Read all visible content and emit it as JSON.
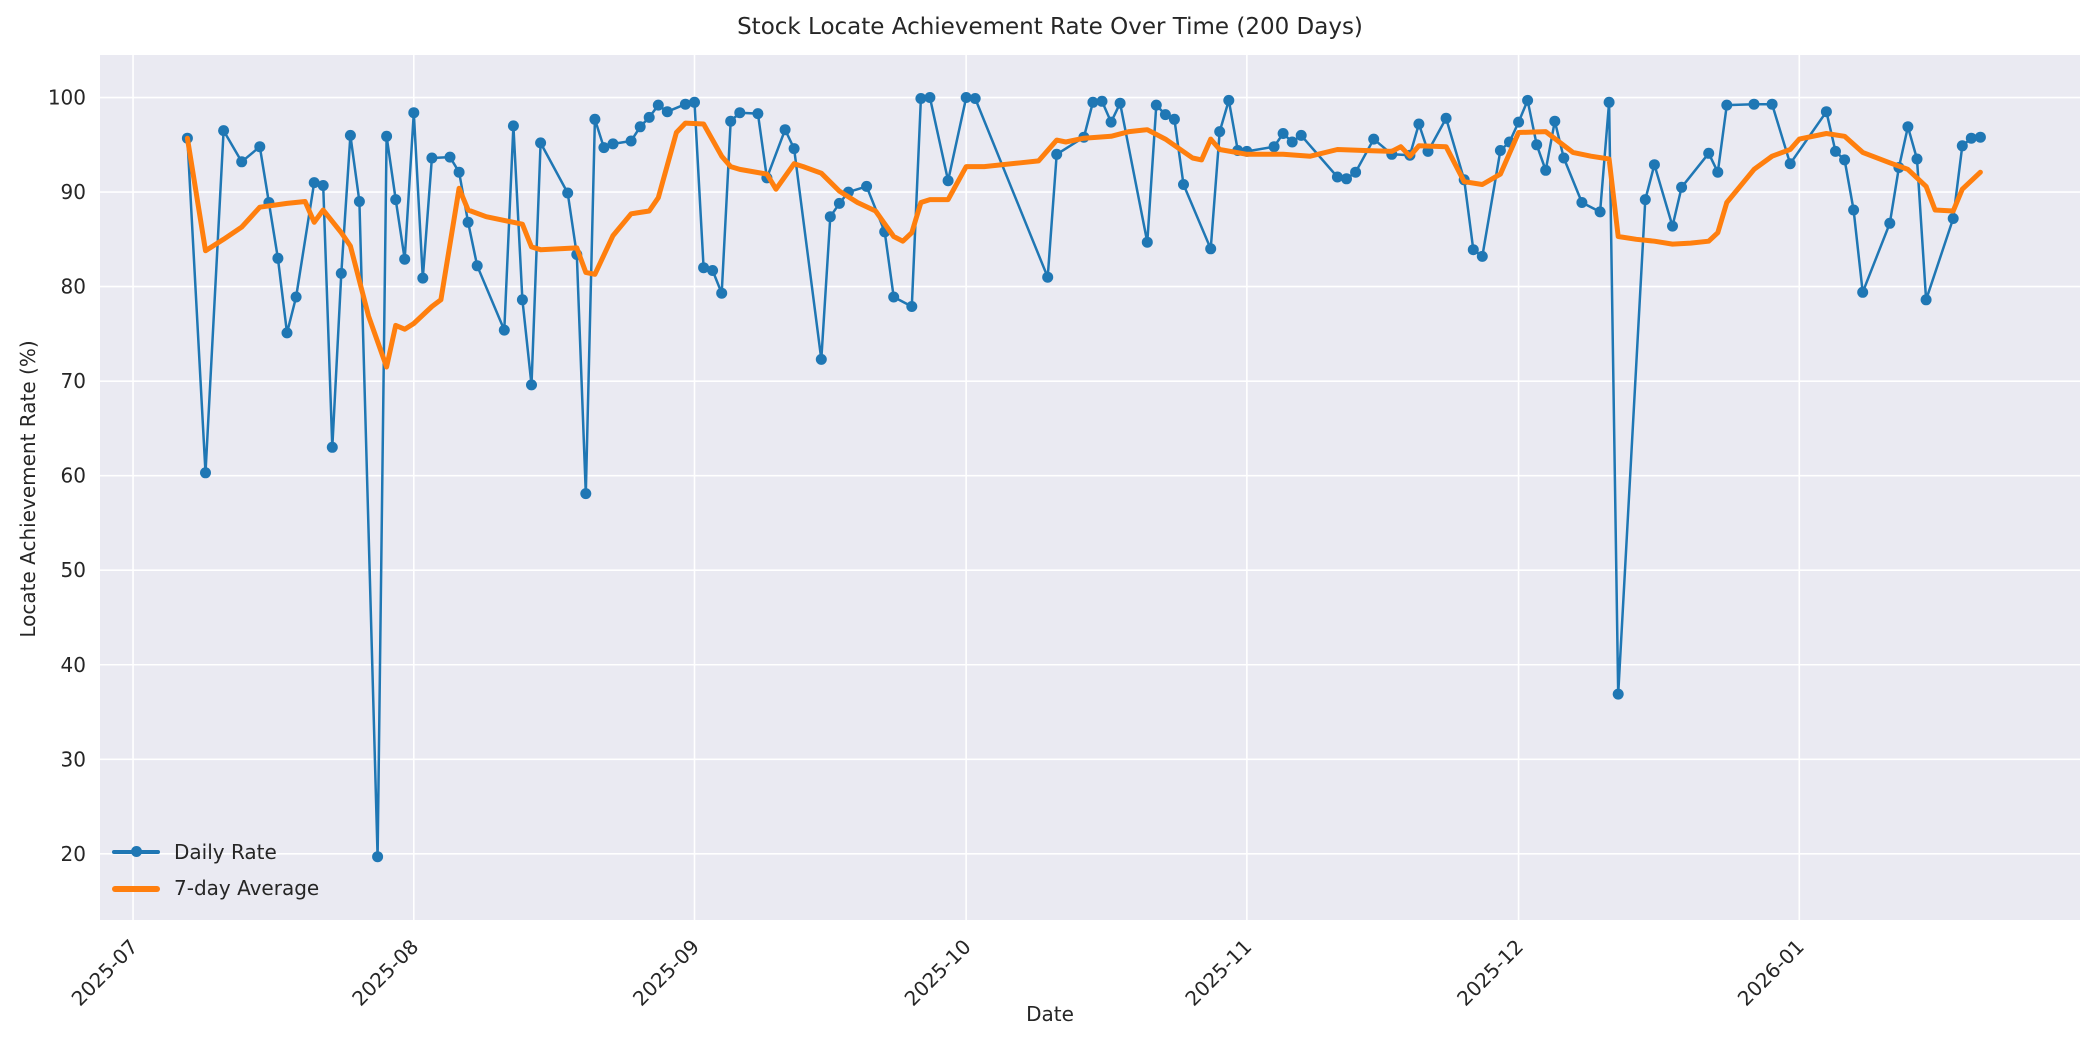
{
  "title": "Stock Locate Achievement Rate Over Time (200 Days)",
  "axes": {
    "xlabel": "Date",
    "ylabel": "Locate Achievement Rate (%)"
  },
  "legend": {
    "daily_label": "Daily Rate",
    "avg_label": "7-day Average"
  },
  "colors": {
    "daily": "#1f77b4",
    "average": "#ff7f0e",
    "plot_bg": "#eaeaf2",
    "grid": "#ffffff",
    "text": "#262626"
  },
  "chart_data": {
    "type": "line",
    "title": "Stock Locate Achievement Rate Over Time (200 Days)",
    "xlabel": "Date",
    "ylabel": "Locate Achievement Rate (%)",
    "grid": true,
    "legend_position": "lower-left",
    "ylim": [
      13.0,
      104.5
    ],
    "xlim_days": [
      -3.65,
      215.0
    ],
    "y_ticks": [
      20,
      30,
      40,
      50,
      60,
      70,
      80,
      90,
      100
    ],
    "x_ticks": [
      {
        "label": "2025-07",
        "day": 0
      },
      {
        "label": "2025-08",
        "day": 31
      },
      {
        "label": "2025-09",
        "day": 62
      },
      {
        "label": "2025-10",
        "day": 92
      },
      {
        "label": "2025-11",
        "day": 123
      },
      {
        "label": "2025-12",
        "day": 153
      },
      {
        "label": "2026-01",
        "day": 184
      }
    ],
    "series": [
      {
        "name": "Daily Rate",
        "color": "#1f77b4",
        "line_width": 2.5,
        "marker": "circle",
        "marker_radius": 5.5,
        "points": [
          [
            "2025-07-07",
            95.7
          ],
          [
            "2025-07-09",
            60.3
          ],
          [
            "2025-07-11",
            96.5
          ],
          [
            "2025-07-13",
            93.2
          ],
          [
            "2025-07-15",
            94.8
          ],
          [
            "2025-07-16",
            88.9
          ],
          [
            "2025-07-17",
            83.0
          ],
          [
            "2025-07-18",
            75.1
          ],
          [
            "2025-07-19",
            78.9
          ],
          [
            "2025-07-21",
            91.0
          ],
          [
            "2025-07-22",
            90.7
          ],
          [
            "2025-07-23",
            63.0
          ],
          [
            "2025-07-24",
            81.4
          ],
          [
            "2025-07-25",
            96.0
          ],
          [
            "2025-07-26",
            89.0
          ],
          [
            "2025-07-28",
            19.7
          ],
          [
            "2025-07-29",
            95.9
          ],
          [
            "2025-07-30",
            89.2
          ],
          [
            "2025-07-31",
            82.9
          ],
          [
            "2025-08-01",
            98.4
          ],
          [
            "2025-08-02",
            80.9
          ],
          [
            "2025-08-03",
            93.6
          ],
          [
            "2025-08-05",
            93.7
          ],
          [
            "2025-08-06",
            92.1
          ],
          [
            "2025-08-07",
            86.8
          ],
          [
            "2025-08-08",
            82.2
          ],
          [
            "2025-08-11",
            75.4
          ],
          [
            "2025-08-12",
            97.0
          ],
          [
            "2025-08-13",
            78.6
          ],
          [
            "2025-08-14",
            69.6
          ],
          [
            "2025-08-15",
            95.2
          ],
          [
            "2025-08-18",
            89.9
          ],
          [
            "2025-08-19",
            83.4
          ],
          [
            "2025-08-20",
            58.1
          ],
          [
            "2025-08-21",
            97.7
          ],
          [
            "2025-08-22",
            94.7
          ],
          [
            "2025-08-23",
            95.1
          ],
          [
            "2025-08-25",
            95.4
          ],
          [
            "2025-08-26",
            96.9
          ],
          [
            "2025-08-27",
            97.9
          ],
          [
            "2025-08-28",
            99.2
          ],
          [
            "2025-08-29",
            98.5
          ],
          [
            "2025-08-31",
            99.3
          ],
          [
            "2025-09-01",
            99.5
          ],
          [
            "2025-09-02",
            82.0
          ],
          [
            "2025-09-03",
            81.7
          ],
          [
            "2025-09-04",
            79.3
          ],
          [
            "2025-09-05",
            97.5
          ],
          [
            "2025-09-06",
            98.4
          ],
          [
            "2025-09-08",
            98.3
          ],
          [
            "2025-09-09",
            91.5
          ],
          [
            "2025-09-11",
            96.6
          ],
          [
            "2025-09-12",
            94.6
          ],
          [
            "2025-09-15",
            72.3
          ],
          [
            "2025-09-16",
            87.4
          ],
          [
            "2025-09-17",
            88.8
          ],
          [
            "2025-09-18",
            90.0
          ],
          [
            "2025-09-20",
            90.6
          ],
          [
            "2025-09-22",
            85.8
          ],
          [
            "2025-09-23",
            78.9
          ],
          [
            "2025-09-25",
            77.9
          ],
          [
            "2025-09-26",
            99.9
          ],
          [
            "2025-09-27",
            100.0
          ],
          [
            "2025-09-29",
            91.2
          ],
          [
            "2025-10-01",
            100.0
          ],
          [
            "2025-10-02",
            99.9
          ],
          [
            "2025-10-10",
            81.0
          ],
          [
            "2025-10-11",
            94.0
          ],
          [
            "2025-10-14",
            95.8
          ],
          [
            "2025-10-15",
            99.5
          ],
          [
            "2025-10-16",
            99.6
          ],
          [
            "2025-10-17",
            97.4
          ],
          [
            "2025-10-18",
            99.4
          ],
          [
            "2025-10-21",
            84.7
          ],
          [
            "2025-10-22",
            99.2
          ],
          [
            "2025-10-23",
            98.2
          ],
          [
            "2025-10-24",
            97.7
          ],
          [
            "2025-10-25",
            90.8
          ],
          [
            "2025-10-28",
            84.0
          ],
          [
            "2025-10-29",
            96.4
          ],
          [
            "2025-10-30",
            99.7
          ],
          [
            "2025-10-31",
            94.4
          ],
          [
            "2025-11-01",
            94.3
          ],
          [
            "2025-11-04",
            94.8
          ],
          [
            "2025-11-05",
            96.2
          ],
          [
            "2025-11-06",
            95.3
          ],
          [
            "2025-11-07",
            96.0
          ],
          [
            "2025-11-11",
            91.6
          ],
          [
            "2025-11-12",
            91.4
          ],
          [
            "2025-11-13",
            92.1
          ],
          [
            "2025-11-15",
            95.6
          ],
          [
            "2025-11-17",
            94.0
          ],
          [
            "2025-11-19",
            93.9
          ],
          [
            "2025-11-20",
            97.2
          ],
          [
            "2025-11-21",
            94.3
          ],
          [
            "2025-11-23",
            97.8
          ],
          [
            "2025-11-25",
            91.3
          ],
          [
            "2025-11-26",
            83.9
          ],
          [
            "2025-11-27",
            83.2
          ],
          [
            "2025-11-29",
            94.4
          ],
          [
            "2025-11-30",
            95.3
          ],
          [
            "2025-12-01",
            97.4
          ],
          [
            "2025-12-02",
            99.7
          ],
          [
            "2025-12-03",
            95.0
          ],
          [
            "2025-12-04",
            92.3
          ],
          [
            "2025-12-05",
            97.5
          ],
          [
            "2025-12-06",
            93.6
          ],
          [
            "2025-12-08",
            88.9
          ],
          [
            "2025-12-10",
            87.9
          ],
          [
            "2025-12-11",
            99.5
          ],
          [
            "2025-12-12",
            36.9
          ],
          [
            "2025-12-15",
            89.2
          ],
          [
            "2025-12-16",
            92.9
          ],
          [
            "2025-12-18",
            86.4
          ],
          [
            "2025-12-19",
            90.5
          ],
          [
            "2025-12-22",
            94.1
          ],
          [
            "2025-12-23",
            92.1
          ],
          [
            "2025-12-24",
            99.2
          ],
          [
            "2025-12-27",
            99.3
          ],
          [
            "2025-12-29",
            99.3
          ],
          [
            "2025-12-31",
            93.0
          ],
          [
            "2026-01-04",
            98.5
          ],
          [
            "2026-01-05",
            94.3
          ],
          [
            "2026-01-06",
            93.4
          ],
          [
            "2026-01-07",
            88.1
          ],
          [
            "2026-01-08",
            79.4
          ],
          [
            "2026-01-11",
            86.7
          ],
          [
            "2026-01-12",
            92.6
          ],
          [
            "2026-01-13",
            96.9
          ],
          [
            "2026-01-14",
            93.5
          ],
          [
            "2026-01-15",
            78.6
          ],
          [
            "2026-01-18",
            87.2
          ],
          [
            "2026-01-19",
            94.9
          ],
          [
            "2026-01-20",
            95.7
          ],
          [
            "2026-01-21",
            95.8
          ]
        ]
      },
      {
        "name": "7-day Average",
        "color": "#ff7f0e",
        "line_width": 5,
        "marker": "none",
        "points": [
          [
            "2025-07-07",
            95.7
          ],
          [
            "2025-07-09",
            83.8
          ],
          [
            "2025-07-11",
            85.0
          ],
          [
            "2025-07-13",
            86.3
          ],
          [
            "2025-07-15",
            88.4
          ],
          [
            "2025-07-18",
            88.8
          ],
          [
            "2025-07-20",
            89.0
          ],
          [
            "2025-07-21",
            86.8
          ],
          [
            "2025-07-22",
            88.1
          ],
          [
            "2025-07-24",
            85.7
          ],
          [
            "2025-07-25",
            84.3
          ],
          [
            "2025-07-27",
            76.9
          ],
          [
            "2025-07-29",
            71.5
          ],
          [
            "2025-07-30",
            75.9
          ],
          [
            "2025-07-31",
            75.5
          ],
          [
            "2025-08-01",
            76.1
          ],
          [
            "2025-08-03",
            77.9
          ],
          [
            "2025-08-04",
            78.6
          ],
          [
            "2025-08-06",
            90.4
          ],
          [
            "2025-08-07",
            88.1
          ],
          [
            "2025-08-09",
            87.4
          ],
          [
            "2025-08-13",
            86.6
          ],
          [
            "2025-08-14",
            84.2
          ],
          [
            "2025-08-15",
            83.9
          ],
          [
            "2025-08-19",
            84.1
          ],
          [
            "2025-08-20",
            81.5
          ],
          [
            "2025-08-21",
            81.3
          ],
          [
            "2025-08-23",
            85.4
          ],
          [
            "2025-08-25",
            87.7
          ],
          [
            "2025-08-27",
            88.0
          ],
          [
            "2025-08-28",
            89.4
          ],
          [
            "2025-08-30",
            96.3
          ],
          [
            "2025-08-31",
            97.3
          ],
          [
            "2025-09-02",
            97.2
          ],
          [
            "2025-09-04",
            93.8
          ],
          [
            "2025-09-05",
            92.7
          ],
          [
            "2025-09-06",
            92.4
          ],
          [
            "2025-09-09",
            91.9
          ],
          [
            "2025-09-10",
            90.3
          ],
          [
            "2025-09-12",
            93.0
          ],
          [
            "2025-09-13",
            92.7
          ],
          [
            "2025-09-15",
            92.0
          ],
          [
            "2025-09-17",
            90.1
          ],
          [
            "2025-09-19",
            88.9
          ],
          [
            "2025-09-21",
            88.0
          ],
          [
            "2025-09-23",
            85.3
          ],
          [
            "2025-09-24",
            84.8
          ],
          [
            "2025-09-25",
            85.7
          ],
          [
            "2025-09-26",
            88.9
          ],
          [
            "2025-09-27",
            89.2
          ],
          [
            "2025-09-29",
            89.2
          ],
          [
            "2025-10-01",
            92.7
          ],
          [
            "2025-10-03",
            92.7
          ],
          [
            "2025-10-07",
            93.1
          ],
          [
            "2025-10-09",
            93.3
          ],
          [
            "2025-10-11",
            95.5
          ],
          [
            "2025-10-12",
            95.3
          ],
          [
            "2025-10-14",
            95.7
          ],
          [
            "2025-10-17",
            95.9
          ],
          [
            "2025-10-19",
            96.4
          ],
          [
            "2025-10-21",
            96.6
          ],
          [
            "2025-10-23",
            95.6
          ],
          [
            "2025-10-26",
            93.6
          ],
          [
            "2025-10-27",
            93.4
          ],
          [
            "2025-10-28",
            95.6
          ],
          [
            "2025-10-29",
            94.5
          ],
          [
            "2025-11-01",
            94.0
          ],
          [
            "2025-11-05",
            94.0
          ],
          [
            "2025-11-08",
            93.8
          ],
          [
            "2025-11-11",
            94.5
          ],
          [
            "2025-11-14",
            94.4
          ],
          [
            "2025-11-17",
            94.3
          ],
          [
            "2025-11-18",
            94.8
          ],
          [
            "2025-11-19",
            93.8
          ],
          [
            "2025-11-20",
            94.9
          ],
          [
            "2025-11-23",
            94.8
          ],
          [
            "2025-11-25",
            91.1
          ],
          [
            "2025-11-27",
            90.8
          ],
          [
            "2025-11-29",
            91.9
          ],
          [
            "2025-12-01",
            96.3
          ],
          [
            "2025-12-04",
            96.4
          ],
          [
            "2025-12-07",
            94.2
          ],
          [
            "2025-12-09",
            93.8
          ],
          [
            "2025-12-11",
            93.5
          ],
          [
            "2025-12-12",
            85.3
          ],
          [
            "2025-12-14",
            85.0
          ],
          [
            "2025-12-16",
            84.8
          ],
          [
            "2025-12-18",
            84.5
          ],
          [
            "2025-12-20",
            84.6
          ],
          [
            "2025-12-22",
            84.8
          ],
          [
            "2025-12-23",
            85.7
          ],
          [
            "2025-12-24",
            88.9
          ],
          [
            "2025-12-27",
            92.4
          ],
          [
            "2025-12-29",
            93.8
          ],
          [
            "2025-12-31",
            94.5
          ],
          [
            "2026-01-01",
            95.6
          ],
          [
            "2026-01-04",
            96.2
          ],
          [
            "2026-01-06",
            95.9
          ],
          [
            "2026-01-08",
            94.2
          ],
          [
            "2026-01-11",
            93.1
          ],
          [
            "2026-01-13",
            92.4
          ],
          [
            "2026-01-15",
            90.6
          ],
          [
            "2026-01-16",
            88.1
          ],
          [
            "2026-01-18",
            88.0
          ],
          [
            "2026-01-19",
            90.3
          ],
          [
            "2026-01-21",
            92.1
          ]
        ]
      }
    ]
  }
}
